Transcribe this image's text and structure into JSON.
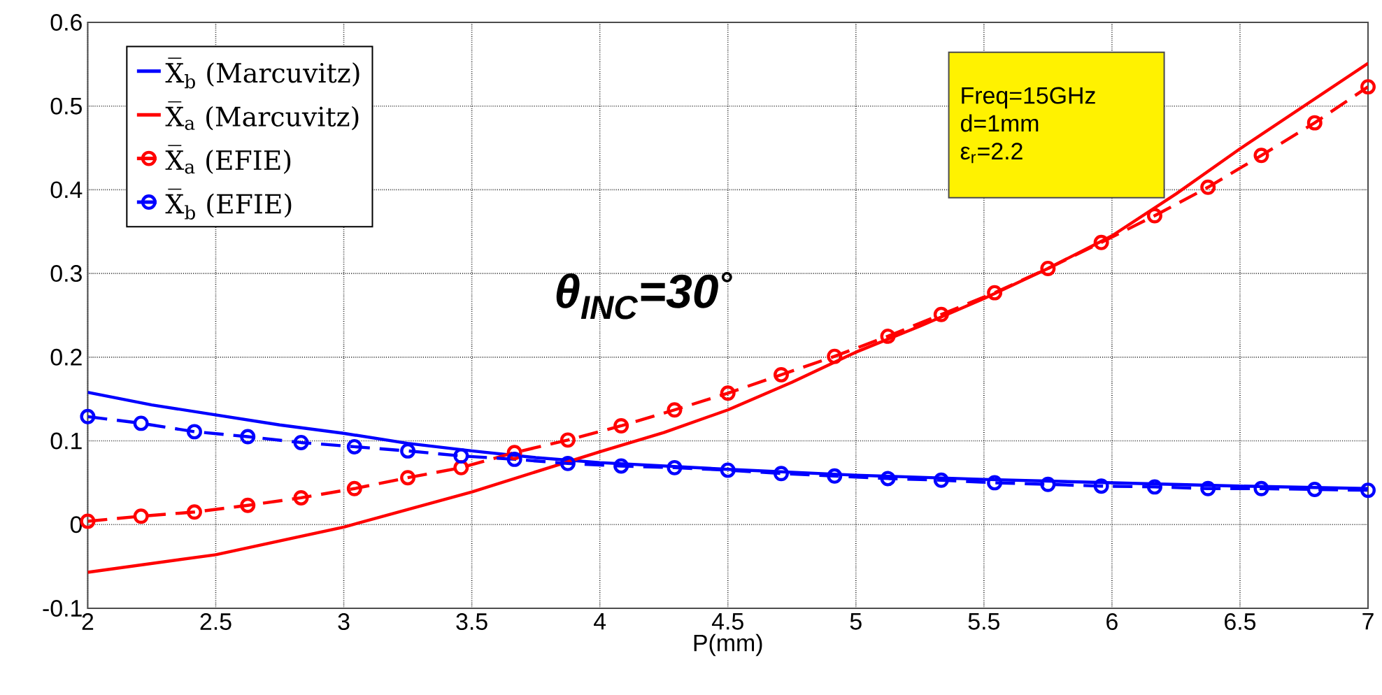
{
  "chart_data": {
    "type": "line",
    "xlabel": "P(mm)",
    "x": [
      2,
      2.2083,
      2.4167,
      2.625,
      2.8333,
      3.0417,
      3.25,
      3.4583,
      3.6667,
      3.875,
      4.0833,
      4.2917,
      4.5,
      4.7083,
      4.9167,
      5.125,
      5.3333,
      5.5417,
      5.75,
      5.9583,
      6.1667,
      6.375,
      6.5833,
      6.7917,
      7
    ],
    "series": [
      {
        "name": "X̅$_{b}$ (Marcuvitz)",
        "color": "#0000ff",
        "marker": "none",
        "line_style": "solid",
        "x": [
          2,
          2.25,
          2.5,
          2.75,
          3,
          3.25,
          3.5,
          3.75,
          4,
          4.5,
          5,
          5.5,
          6,
          6.5,
          7
        ],
        "values": [
          0.158,
          0.143,
          0.131,
          0.119,
          0.109,
          0.097,
          0.088,
          0.08,
          0.074,
          0.066,
          0.059,
          0.054,
          0.05,
          0.046,
          0.043
        ]
      },
      {
        "name": "X̅$_{a}$ (Marcuvitz)",
        "color": "#ff0000",
        "marker": "none",
        "line_style": "solid",
        "x": [
          2,
          2.5,
          3,
          3.5,
          4,
          4.25,
          4.5,
          4.75,
          5,
          5.25,
          5.5,
          5.75,
          6,
          6.25,
          6.5,
          6.75,
          7
        ],
        "values": [
          -0.057,
          -0.036,
          -0.003,
          0.039,
          0.087,
          0.11,
          0.137,
          0.17,
          0.206,
          0.237,
          0.27,
          0.306,
          0.345,
          0.395,
          0.449,
          0.5,
          0.551
        ]
      },
      {
        "name": "X̅$_{a}$ (EFIE)",
        "color": "#ff0000",
        "marker": "circle",
        "line_style": "dashed",
        "values": [
          0.004,
          0.01,
          0.015,
          0.023,
          0.032,
          0.043,
          0.056,
          0.068,
          0.086,
          0.101,
          0.118,
          0.137,
          0.157,
          0.179,
          0.201,
          0.225,
          0.251,
          0.277,
          0.306,
          0.337,
          0.369,
          0.403,
          0.441,
          0.48,
          0.523
        ]
      },
      {
        "name": "X̅$_{b}$ (EFIE)",
        "color": "#0000ff",
        "marker": "circle",
        "line_style": "dashed",
        "values": [
          0.129,
          0.121,
          0.111,
          0.105,
          0.098,
          0.093,
          0.088,
          0.082,
          0.078,
          0.073,
          0.07,
          0.068,
          0.065,
          0.061,
          0.058,
          0.055,
          0.053,
          0.05,
          0.048,
          0.046,
          0.045,
          0.043,
          0.043,
          0.042,
          0.041
        ]
      }
    ],
    "xlim": [
      2,
      7
    ],
    "ylim": [
      -0.1,
      0.6
    ],
    "xticks": [
      2,
      2.5,
      3,
      3.5,
      4,
      4.5,
      5,
      5.5,
      6,
      6.5,
      7
    ],
    "yticks": [
      -0.1,
      0,
      0.1,
      0.2,
      0.3,
      0.4,
      0.5,
      0.6
    ],
    "grid": true,
    "legend": "top left",
    "annotations": [
      "θ$_{INC}$=30$^{°}$",
      "Freq=15GHz",
      "d=1mm",
      "ε$_{r}$=2.2"
    ]
  }
}
